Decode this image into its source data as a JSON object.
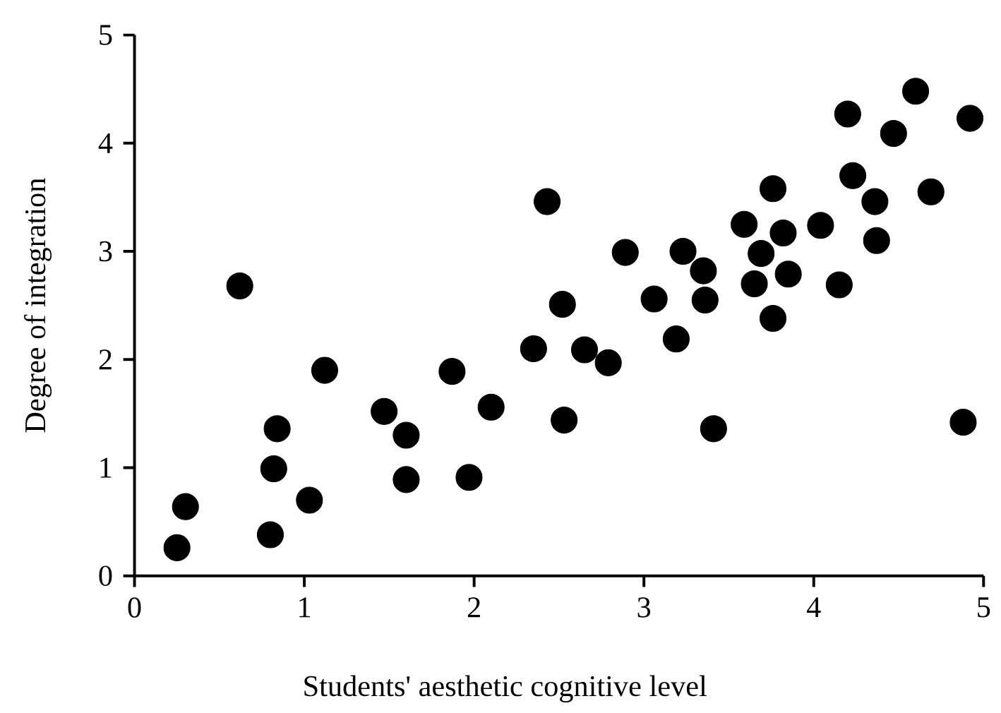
{
  "chart_data": {
    "type": "scatter",
    "xlabel": "Students' aesthetic cognitive level",
    "ylabel": "Degree of integration",
    "xlim": [
      0,
      5
    ],
    "ylim": [
      0,
      5
    ],
    "xticks": [
      0,
      1,
      2,
      3,
      4,
      5
    ],
    "yticks": [
      0,
      1,
      2,
      3,
      4,
      5
    ],
    "marker": "circle",
    "series": [
      {
        "color": "#000000",
        "x": [
          0.25,
          0.3,
          0.62,
          0.8,
          0.82,
          0.84,
          1.03,
          1.12,
          1.47,
          1.6,
          1.6,
          1.87,
          1.97,
          2.1,
          2.35,
          2.43,
          2.52,
          2.53,
          2.65,
          2.79,
          2.89,
          3.06,
          3.19,
          3.23,
          3.35,
          3.36,
          3.41,
          3.59,
          3.65,
          3.69,
          3.76,
          3.76,
          3.82,
          3.85,
          4.04,
          4.15,
          4.2,
          4.23,
          4.36,
          4.37,
          4.47,
          4.6,
          4.69,
          4.88,
          4.92
        ],
        "values": [
          0.26,
          0.64,
          2.68,
          0.38,
          0.99,
          1.36,
          0.7,
          1.9,
          1.52,
          1.3,
          0.89,
          1.89,
          0.91,
          1.56,
          2.1,
          3.46,
          2.51,
          1.44,
          2.09,
          1.97,
          2.99,
          2.56,
          2.19,
          3.0,
          2.82,
          2.55,
          1.36,
          3.25,
          2.7,
          2.98,
          3.58,
          2.38,
          3.17,
          2.79,
          3.24,
          2.69,
          4.27,
          3.7,
          3.46,
          3.1,
          4.09,
          4.48,
          3.55,
          1.42,
          4.23
        ]
      }
    ]
  }
}
